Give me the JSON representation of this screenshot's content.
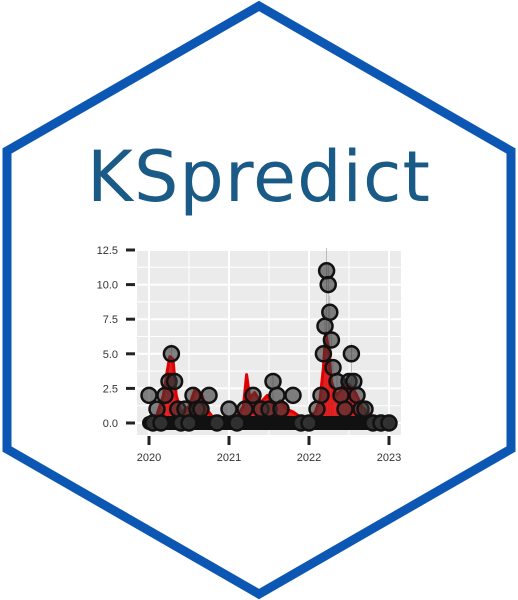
{
  "logo": {
    "title": "KSpredict",
    "title_color": "#1a5a86",
    "border_color": "#0b57b3",
    "background_color": "#ffffff"
  },
  "chart_data": {
    "type": "scatter",
    "title": "",
    "xlabel": "",
    "ylabel": "",
    "xlim": [
      2020,
      2023
    ],
    "ylim": [
      0,
      12.5
    ],
    "x_ticks": [
      "2020",
      "2021",
      "2022",
      "2023"
    ],
    "y_ticks": [
      "0.0",
      "2.5",
      "5.0",
      "7.5",
      "10.0",
      "12.5"
    ],
    "grid": true,
    "panel_color": "#ebebeb",
    "point_color": "#333333",
    "line_color": "#e00000",
    "points": [
      [
        2020.0,
        2.0
      ],
      [
        2020.05,
        0.0
      ],
      [
        2020.1,
        1.0
      ],
      [
        2020.15,
        0.0
      ],
      [
        2020.2,
        2.0
      ],
      [
        2020.25,
        3.0
      ],
      [
        2020.28,
        5.0
      ],
      [
        2020.32,
        3.0
      ],
      [
        2020.36,
        1.0
      ],
      [
        2020.4,
        0.0
      ],
      [
        2020.45,
        1.0
      ],
      [
        2020.5,
        0.0
      ],
      [
        2020.55,
        2.0
      ],
      [
        2020.6,
        1.0
      ],
      [
        2020.65,
        1.0
      ],
      [
        2020.75,
        2.0
      ],
      [
        2020.85,
        0.0
      ],
      [
        2021.0,
        1.0
      ],
      [
        2021.1,
        0.0
      ],
      [
        2021.2,
        1.0
      ],
      [
        2021.3,
        2.0
      ],
      [
        2021.4,
        1.0
      ],
      [
        2021.5,
        1.0
      ],
      [
        2021.55,
        3.0
      ],
      [
        2021.6,
        2.0
      ],
      [
        2021.65,
        1.0
      ],
      [
        2021.8,
        2.0
      ],
      [
        2021.9,
        0.0
      ],
      [
        2022.0,
        0.0
      ],
      [
        2022.1,
        1.0
      ],
      [
        2022.15,
        2.0
      ],
      [
        2022.18,
        5.0
      ],
      [
        2022.2,
        7.0
      ],
      [
        2022.22,
        11.0
      ],
      [
        2022.24,
        10.0
      ],
      [
        2022.26,
        8.0
      ],
      [
        2022.28,
        6.0
      ],
      [
        2022.3,
        4.0
      ],
      [
        2022.35,
        3.0
      ],
      [
        2022.4,
        2.0
      ],
      [
        2022.45,
        1.0
      ],
      [
        2022.5,
        3.0
      ],
      [
        2022.53,
        5.0
      ],
      [
        2022.56,
        3.0
      ],
      [
        2022.6,
        2.0
      ],
      [
        2022.65,
        1.0
      ],
      [
        2022.7,
        1.0
      ],
      [
        2022.8,
        0.0
      ],
      [
        2022.9,
        0.0
      ],
      [
        2023.0,
        0.0
      ]
    ],
    "line": [
      [
        2020.0,
        0.3
      ],
      [
        2020.1,
        0.6
      ],
      [
        2020.18,
        2.0
      ],
      [
        2020.22,
        3.5
      ],
      [
        2020.26,
        4.8
      ],
      [
        2020.3,
        4.6
      ],
      [
        2020.34,
        2.0
      ],
      [
        2020.4,
        0.8
      ],
      [
        2020.5,
        1.2
      ],
      [
        2020.58,
        2.5
      ],
      [
        2020.66,
        2.0
      ],
      [
        2020.72,
        1.0
      ],
      [
        2020.8,
        0.4
      ],
      [
        2020.9,
        0.3
      ],
      [
        2021.0,
        0.4
      ],
      [
        2021.1,
        0.5
      ],
      [
        2021.18,
        1.2
      ],
      [
        2021.22,
        3.5
      ],
      [
        2021.26,
        1.8
      ],
      [
        2021.32,
        2.2
      ],
      [
        2021.4,
        1.5
      ],
      [
        2021.48,
        2.0
      ],
      [
        2021.56,
        1.2
      ],
      [
        2021.64,
        1.6
      ],
      [
        2021.72,
        1.0
      ],
      [
        2021.8,
        0.8
      ],
      [
        2021.9,
        0.4
      ],
      [
        2022.0,
        0.4
      ],
      [
        2022.08,
        0.8
      ],
      [
        2022.14,
        1.8
      ],
      [
        2022.18,
        4.0
      ],
      [
        2022.21,
        6.5
      ],
      [
        2022.24,
        5.5
      ],
      [
        2022.28,
        3.0
      ],
      [
        2022.34,
        2.0
      ],
      [
        2022.42,
        2.5
      ],
      [
        2022.5,
        2.8
      ],
      [
        2022.58,
        2.2
      ],
      [
        2022.66,
        1.2
      ],
      [
        2022.76,
        0.6
      ],
      [
        2022.86,
        0.3
      ],
      [
        2023.0,
        0.2
      ]
    ]
  }
}
